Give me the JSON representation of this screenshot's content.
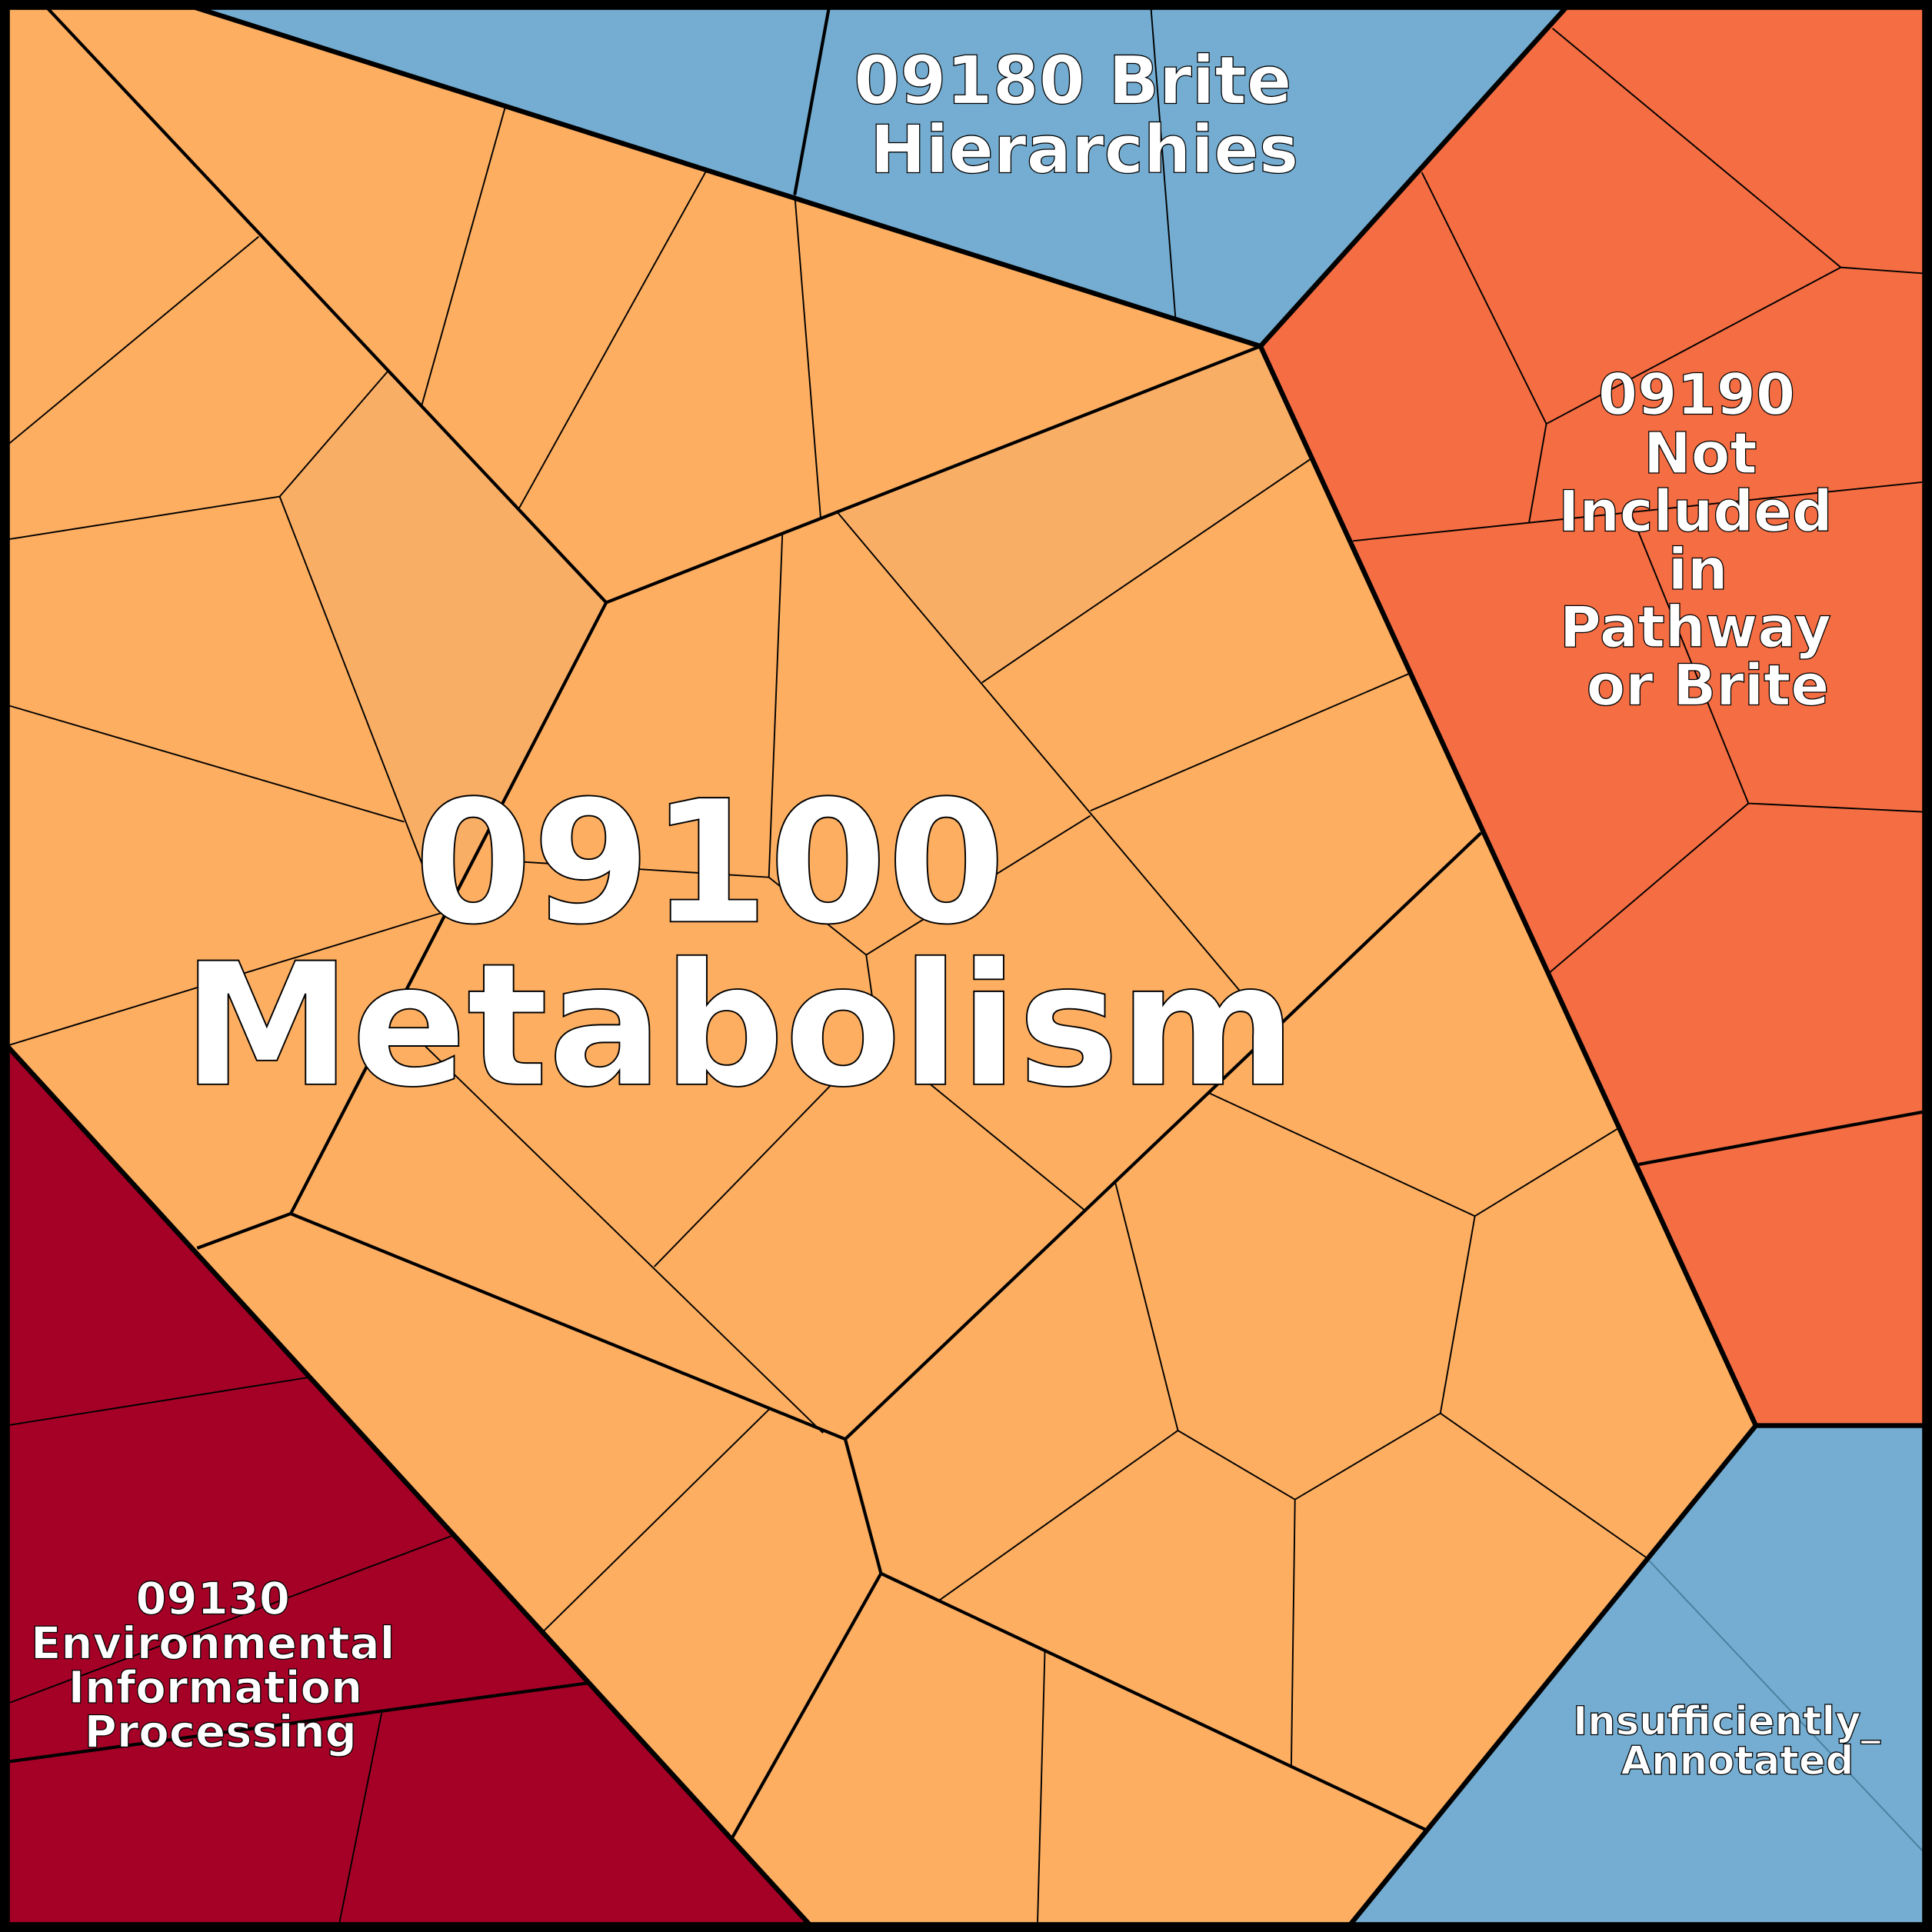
{
  "diagram": {
    "type": "voronoi-treemap",
    "regions": [
      {
        "id": "metabolism",
        "lines": [
          "09100",
          "Metabolism"
        ],
        "color": "#FDAE61"
      },
      {
        "id": "brite",
        "lines": [
          "09180 Brite",
          "Hierarchies"
        ],
        "color": "#74ADD1"
      },
      {
        "id": "not-included",
        "lines": [
          "09190",
          "Not",
          "Included",
          "in",
          "Pathway",
          "or Brite"
        ],
        "color": "#F46D43"
      },
      {
        "id": "environmental",
        "lines": [
          "09130",
          "Environmental",
          "Information",
          "Processing"
        ],
        "color": "#A50026"
      },
      {
        "id": "insufficient",
        "lines": [
          "Insufficiently_",
          "Annotated"
        ],
        "color": "#74ADD1"
      }
    ],
    "accent_cell_color": "#F9AE66"
  }
}
